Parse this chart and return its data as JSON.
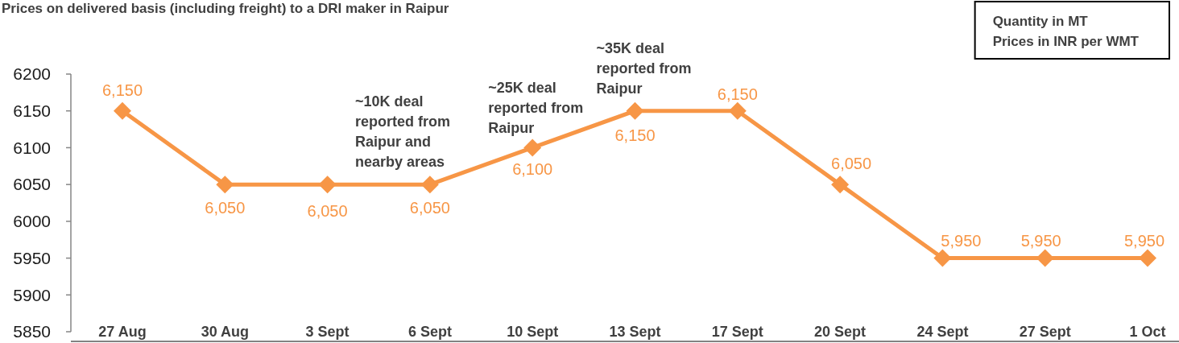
{
  "chart_data": {
    "type": "line",
    "title": "Prices on delivered basis (including freight) to a DRI maker in Raipur",
    "categories": [
      "27 Aug",
      "30 Aug",
      "3 Sept",
      "6 Sept",
      "10 Sept",
      "13 Sept",
      "17 Sept",
      "20 Sept",
      "24 Sept",
      "27 Sept",
      "1 Oct"
    ],
    "series": [
      {
        "color": "#f79646",
        "values": [
          6150,
          6050,
          6050,
          6050,
          6100,
          6150,
          6150,
          6050,
          5950,
          5950,
          5950
        ],
        "value_labels": [
          "6,150",
          "6,050",
          "6,050",
          "6,050",
          "6,100",
          "6,150",
          "6,150",
          "6,050",
          "5,950",
          "5,950",
          "5,950"
        ]
      }
    ],
    "ylim": [
      5850,
      6200
    ],
    "yticks": [
      5850,
      5900,
      5950,
      6000,
      6050,
      6100,
      6150,
      6200
    ],
    "marker": "diamond",
    "line_style": "solid",
    "annotations": [
      "Quantity in MT",
      "Prices in INR per WMT",
      {
        "text": "~10K deal reported from Raipur and nearby areas",
        "x": "6 Sept",
        "y": 6050
      },
      {
        "text": "~25K deal reported from Raipur",
        "x": "10 Sept",
        "y": 6100
      },
      {
        "text": "~35K deal reported from Raipur",
        "x": "13 Sept",
        "y": 6150
      }
    ]
  }
}
